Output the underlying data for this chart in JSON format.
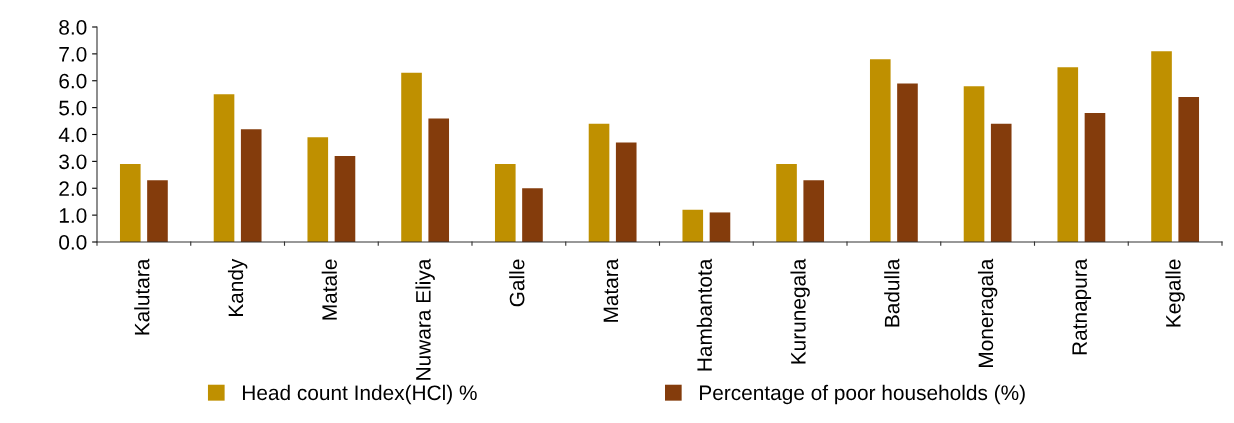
{
  "chart_data": {
    "type": "bar",
    "categories": [
      "Kalutara",
      "Kandy",
      "Matale",
      "Nuwara Eliya",
      "Galle",
      "Matara",
      "Hambantota",
      "Kurunegala",
      "Badulla",
      "Moneragala",
      "Ratnapura",
      "Kegalle"
    ],
    "series": [
      {
        "name": "Head count Index(HCl) %",
        "color": "#bf9000",
        "values": [
          2.9,
          5.5,
          3.9,
          6.3,
          2.9,
          4.4,
          1.2,
          2.9,
          6.8,
          5.8,
          6.5,
          7.1
        ]
      },
      {
        "name": "Percentage of poor households (%)",
        "color": "#843c0c",
        "values": [
          2.3,
          4.2,
          3.2,
          4.6,
          2.0,
          3.7,
          1.1,
          2.3,
          5.9,
          4.4,
          4.8,
          5.4
        ]
      }
    ],
    "ylim": [
      0,
      8
    ],
    "yticks": [
      {
        "value": 0,
        "label": "0.0"
      },
      {
        "value": 1,
        "label": "1.0"
      },
      {
        "value": 2,
        "label": "2.0"
      },
      {
        "value": 3,
        "label": "3.0"
      },
      {
        "value": 4,
        "label": "4.0"
      },
      {
        "value": 5,
        "label": "5.0"
      },
      {
        "value": 6,
        "label": "6.0"
      },
      {
        "value": 7,
        "label": "7.0"
      },
      {
        "value": 8,
        "label": "8.0"
      }
    ],
    "grid": false,
    "legend": "bottom"
  }
}
